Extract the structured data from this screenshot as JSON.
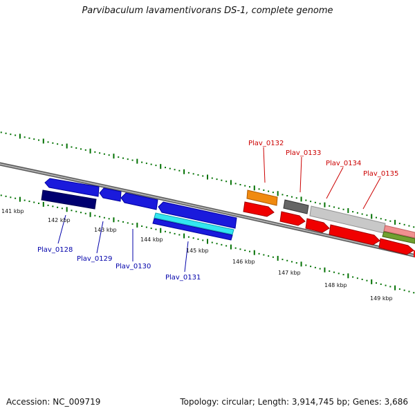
{
  "title": "Parvibaculum lavamentivorans DS-1, complete genome",
  "footer": {
    "accession": "Accession: NC_009719",
    "topology": "Topology: circular; Length: 3,914,745 bp; Genes: 3,686"
  },
  "colors": {
    "backbone": "#808080",
    "tick": "#007000",
    "blue": "#1a1adc",
    "navy": "#000070",
    "cyan": "#33e6f0",
    "red": "#f00000",
    "orange": "#f08a10",
    "darkgray": "#666666",
    "lightgray": "#c8c8c8",
    "pink": "#f09090",
    "olive": "#70a030"
  },
  "kbp_labels": [
    "141 kbp",
    "142 kbp",
    "143 kbp",
    "144 kbp",
    "145 kbp",
    "146 kbp",
    "147 kbp",
    "148 kbp",
    "149 kbp"
  ],
  "genes": [
    {
      "label": "Plav_0128",
      "color": "blue"
    },
    {
      "label": "Plav_0129",
      "color": "blue"
    },
    {
      "label": "Plav_0130",
      "color": "blue"
    },
    {
      "label": "Plav_0131",
      "color": "blue"
    },
    {
      "label": "Plav_0132",
      "color": "red"
    },
    {
      "label": "Plav_0133",
      "color": "red"
    },
    {
      "label": "Plav_0134",
      "color": "red"
    },
    {
      "label": "Plav_0135",
      "color": "red"
    }
  ]
}
